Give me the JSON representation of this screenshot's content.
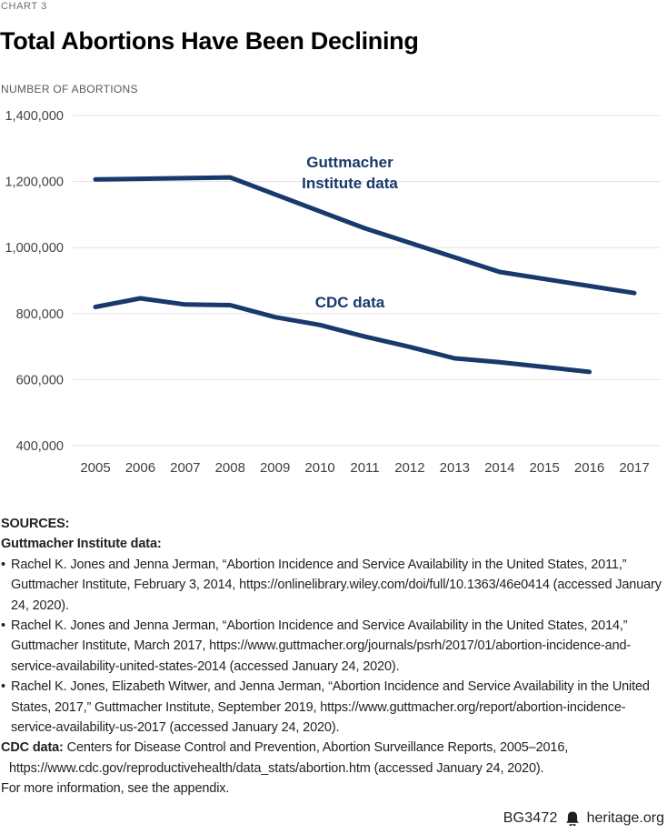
{
  "chart_data": {
    "type": "line",
    "kicker": "CHART 3",
    "title": "Total Abortions Have Been Declining",
    "ylabel": "NUMBER OF ABORTIONS",
    "xlabel": "",
    "xlim": [
      2005,
      2017
    ],
    "ylim": [
      400000,
      1400000
    ],
    "grid": true,
    "legend_position": "inline-labels",
    "x_ticks": [
      "2005",
      "2006",
      "2007",
      "2008",
      "2009",
      "2010",
      "2011",
      "2012",
      "2013",
      "2014",
      "2015",
      "2016",
      "2017"
    ],
    "y_ticks": [
      {
        "v": 1400000,
        "label": "1,400,000"
      },
      {
        "v": 1200000,
        "label": "1,200,000"
      },
      {
        "v": 1000000,
        "label": "1,000,000"
      },
      {
        "v": 800000,
        "label": "800,000"
      },
      {
        "v": 600000,
        "label": "600,000"
      },
      {
        "v": 400000,
        "label": "400,000"
      }
    ],
    "line_color": "#17396b",
    "grid_color": "#e2e2e2",
    "tick_color": "#414042",
    "series": [
      {
        "name": "Guttmacher Institute data",
        "label_lines": [
          "Guttmacher",
          "Institute data"
        ],
        "x": [
          2005,
          2008,
          2011,
          2014,
          2017
        ],
        "values": [
          1206200,
          1212350,
          1058490,
          926190,
          862320
        ]
      },
      {
        "name": "CDC data",
        "label_lines": [
          "CDC data"
        ],
        "x": [
          2005,
          2006,
          2007,
          2008,
          2009,
          2010,
          2011,
          2012,
          2013,
          2014,
          2015,
          2016
        ],
        "values": [
          820151,
          846181,
          827609,
          825564,
          789217,
          765651,
          730322,
          699202,
          664435,
          652639,
          638169,
          623471
        ]
      }
    ]
  },
  "sources": {
    "heading": "SOURCES:",
    "guttmacher_heading": "Guttmacher Institute data:",
    "bullet": "•",
    "bullets": [
      "Rachel K. Jones and Jenna Jerman, “Abortion Incidence and Service Availability in the United States, 2011,” Guttmacher Institute, February 3, 2014, https://onlinelibrary.wiley.com/doi/full/10.1363/46e0414 (accessed January 24, 2020).",
      "Rachel K. Jones and Jenna Jerman, “Abortion Incidence and Service Availability in the United States, 2014,” Guttmacher Institute, March 2017, https://www.guttmacher.org/journals/psrh/2017/01/abortion-incidence-and-service-availability-united-states-2014 (accessed January 24, 2020).",
      "Rachel K. Jones, Elizabeth Witwer, and Jenna Jerman, “Abortion Incidence and Service Availability in the United States, 2017,” Guttmacher Institute, September 2019, https://www.guttmacher.org/report/abortion-incidence-service-availability-us-2017 (accessed January 24, 2020)."
    ],
    "cdc_label": "CDC data:",
    "cdc_text": "Centers for Disease Control and Prevention, Abortion Surveillance Reports, 2005–2016, https://www.cdc.gov/reproductivehealth/data_stats/abortion.htm (accessed January 24, 2020).",
    "more_info": "For more information, see the appendix."
  },
  "footer": {
    "doc_id": "BG3472",
    "site": "heritage.org"
  }
}
